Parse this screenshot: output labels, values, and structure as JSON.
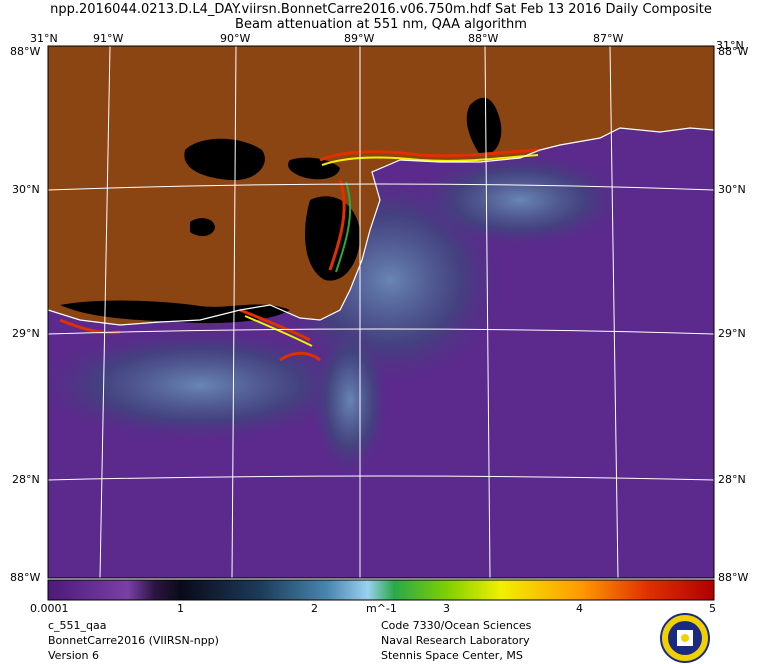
{
  "header": {
    "title_line1": "npp.2016044.0213.D.L4_DAY.viirsn.BonnetCarre2016.v06.750m.hdf     Sat Feb 13 2016 Daily Composite",
    "title_line2": "Beam attenuation at 551 nm, QAA algorithm"
  },
  "map": {
    "top_lon_labels": [
      "91°W",
      "90°W",
      "89°W",
      "88°W",
      "87°W"
    ],
    "corner_top_left": "31°N\n88°W",
    "top_right_corner_label": "31°N",
    "lat_labels_left": [
      "30°N",
      "29°N",
      "28°N"
    ],
    "lat_labels_right": [
      "30°N",
      "29°N",
      "28°N"
    ],
    "bottom_corner_left": "88°W",
    "bottom_corner_right": "88°W",
    "colors": {
      "land": "#8b4512",
      "water_dark": "#5b2a8c",
      "nodata": "#000000",
      "grid": "#ffffff"
    }
  },
  "colorbar": {
    "tick_labels": [
      "0.0001",
      "1",
      "2",
      "m^-1",
      "3",
      "4",
      "5"
    ],
    "colors": [
      "#4b1a7a",
      "#7a3fa6",
      "#2c1540",
      "#0a0a1a",
      "#1d3c5a",
      "#4a86b0",
      "#9bd0f0",
      "#2aa84a",
      "#7fd000",
      "#f0f000",
      "#ff9a00",
      "#e03000",
      "#b00000"
    ]
  },
  "footer": {
    "left": [
      "c_551_qaa",
      "BonnetCarre2016 (VIIRSN-npp)",
      "Version 6"
    ],
    "right": [
      "Code 7330/Ocean Sciences",
      "Naval Research Laboratory",
      "Stennis Space Center, MS"
    ]
  }
}
